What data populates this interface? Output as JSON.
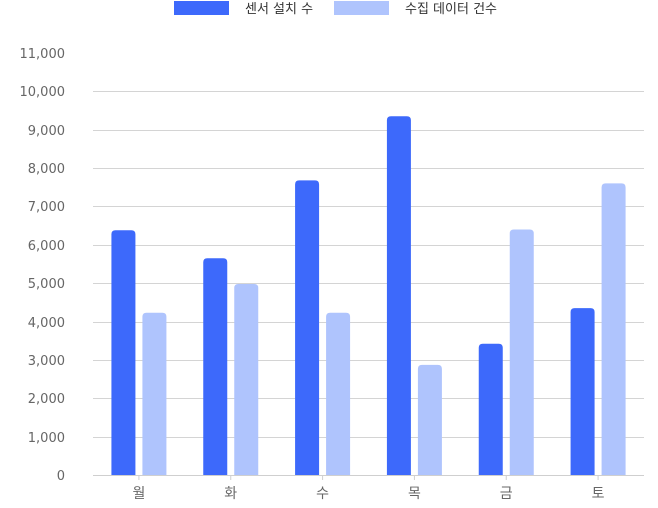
{
  "chart_data": {
    "type": "bar",
    "title": "",
    "xlabel": "",
    "ylabel": "",
    "categories": [
      "월",
      "화",
      "수",
      "목",
      "금",
      "토"
    ],
    "series": [
      {
        "name": "센서 설치 수",
        "color": "#3d69fb",
        "values": [
          6380,
          5650,
          7680,
          9350,
          3420,
          4350
        ]
      },
      {
        "name": "수집 데이터 건수",
        "color": "#afc4fd",
        "values": [
          4230,
          4980,
          4230,
          2870,
          6400,
          7600
        ]
      }
    ],
    "ylim": [
      0,
      11000
    ],
    "yticks": [
      0,
      1000,
      2000,
      3000,
      4000,
      5000,
      6000,
      7000,
      8000,
      9000,
      10000,
      11000
    ],
    "ytick_labels": [
      "0",
      "1,000",
      "2,000",
      "3,000",
      "4,000",
      "5,000",
      "6,000",
      "7,000",
      "8,000",
      "9,000",
      "10,000",
      "11,000"
    ],
    "grid": true,
    "legend_position": "top-center",
    "grid_color": "#d4d4d4",
    "axis_color": "#cfcfcf"
  }
}
